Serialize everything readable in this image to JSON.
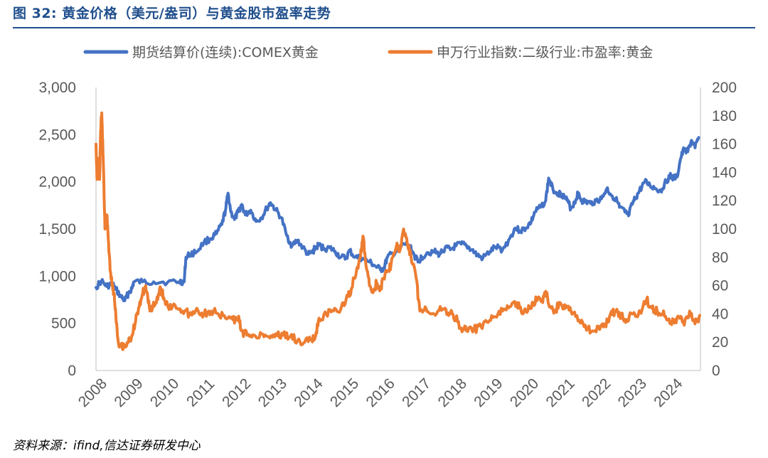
{
  "figure": {
    "title": "图 32:  黄金价格（美元/盎司）与黄金股市盈率走势",
    "source": "资料来源：ifind,信达证券研发中心"
  },
  "chart_data": {
    "type": "line",
    "legend_position": "top",
    "grid": false,
    "y_left": {
      "min": 0,
      "max": 3000,
      "step": 500,
      "tick_labels": [
        "0",
        "500",
        "1,000",
        "1,500",
        "2,000",
        "2,500",
        "3,000"
      ]
    },
    "y_right": {
      "min": 0,
      "max": 200,
      "step": 20,
      "tick_labels": [
        "0",
        "20",
        "40",
        "60",
        "80",
        "100",
        "120",
        "140",
        "160",
        "180",
        "200"
      ]
    },
    "x_range": [
      2008.0,
      2024.8
    ],
    "x_tick_labels": [
      "2008",
      "2009",
      "2010",
      "2011",
      "2012",
      "2013",
      "2014",
      "2015",
      "2016",
      "2017",
      "2018",
      "2019",
      "2020",
      "2021",
      "2022",
      "2023",
      "2024"
    ],
    "series": [
      {
        "name": "期货结算价(连续):COMEX黄金",
        "axis": "left",
        "color": "#4472c4",
        "points": [
          [
            2008.0,
            880
          ],
          [
            2008.15,
            950
          ],
          [
            2008.3,
            890
          ],
          [
            2008.45,
            920
          ],
          [
            2008.55,
            860
          ],
          [
            2008.7,
            780
          ],
          [
            2008.8,
            740
          ],
          [
            2008.9,
            820
          ],
          [
            2009.0,
            870
          ],
          [
            2009.05,
            940
          ],
          [
            2009.3,
            940
          ],
          [
            2009.6,
            940
          ],
          [
            2010.0,
            940
          ],
          [
            2010.3,
            940
          ],
          [
            2010.45,
            940
          ],
          [
            2010.5,
            1200
          ],
          [
            2010.6,
            1230
          ],
          [
            2010.8,
            1260
          ],
          [
            2011.0,
            1360
          ],
          [
            2011.2,
            1400
          ],
          [
            2011.35,
            1450
          ],
          [
            2011.5,
            1550
          ],
          [
            2011.6,
            1700
          ],
          [
            2011.67,
            1880
          ],
          [
            2011.75,
            1680
          ],
          [
            2011.85,
            1600
          ],
          [
            2011.95,
            1680
          ],
          [
            2012.05,
            1760
          ],
          [
            2012.15,
            1650
          ],
          [
            2012.3,
            1700
          ],
          [
            2012.45,
            1580
          ],
          [
            2012.6,
            1620
          ],
          [
            2012.75,
            1720
          ],
          [
            2012.85,
            1780
          ],
          [
            2013.0,
            1700
          ],
          [
            2013.15,
            1620
          ],
          [
            2013.3,
            1430
          ],
          [
            2013.45,
            1320
          ],
          [
            2013.6,
            1380
          ],
          [
            2013.75,
            1300
          ],
          [
            2013.9,
            1230
          ],
          [
            2014.0,
            1250
          ],
          [
            2014.1,
            1300
          ],
          [
            2014.2,
            1330
          ],
          [
            2014.35,
            1290
          ],
          [
            2014.5,
            1300
          ],
          [
            2014.65,
            1260
          ],
          [
            2014.8,
            1200
          ],
          [
            2014.95,
            1190
          ],
          [
            2015.05,
            1270
          ],
          [
            2015.2,
            1200
          ],
          [
            2015.4,
            1190
          ],
          [
            2015.6,
            1150
          ],
          [
            2015.75,
            1110
          ],
          [
            2015.9,
            1070
          ],
          [
            2016.0,
            1080
          ],
          [
            2016.1,
            1200
          ],
          [
            2016.25,
            1240
          ],
          [
            2016.4,
            1270
          ],
          [
            2016.55,
            1340
          ],
          [
            2016.7,
            1330
          ],
          [
            2016.85,
            1220
          ],
          [
            2016.95,
            1150
          ],
          [
            2017.05,
            1200
          ],
          [
            2017.2,
            1250
          ],
          [
            2017.4,
            1260
          ],
          [
            2017.55,
            1230
          ],
          [
            2017.7,
            1300
          ],
          [
            2017.85,
            1280
          ],
          [
            2018.0,
            1320
          ],
          [
            2018.15,
            1340
          ],
          [
            2018.3,
            1320
          ],
          [
            2018.45,
            1280
          ],
          [
            2018.6,
            1220
          ],
          [
            2018.75,
            1190
          ],
          [
            2018.95,
            1260
          ],
          [
            2019.1,
            1310
          ],
          [
            2019.3,
            1280
          ],
          [
            2019.5,
            1400
          ],
          [
            2019.65,
            1510
          ],
          [
            2019.8,
            1480
          ],
          [
            2019.95,
            1510
          ],
          [
            2020.1,
            1580
          ],
          [
            2020.2,
            1680
          ],
          [
            2020.35,
            1730
          ],
          [
            2020.5,
            1800
          ],
          [
            2020.58,
            2040
          ],
          [
            2020.7,
            1920
          ],
          [
            2020.85,
            1880
          ],
          [
            2020.95,
            1870
          ],
          [
            2021.1,
            1800
          ],
          [
            2021.2,
            1720
          ],
          [
            2021.3,
            1780
          ],
          [
            2021.4,
            1880
          ],
          [
            2021.5,
            1800
          ],
          [
            2021.6,
            1790
          ],
          [
            2021.75,
            1770
          ],
          [
            2021.9,
            1800
          ],
          [
            2022.05,
            1820
          ],
          [
            2022.2,
            1930
          ],
          [
            2022.3,
            1870
          ],
          [
            2022.45,
            1820
          ],
          [
            2022.55,
            1730
          ],
          [
            2022.7,
            1680
          ],
          [
            2022.8,
            1640
          ],
          [
            2022.9,
            1760
          ],
          [
            2023.0,
            1830
          ],
          [
            2023.1,
            1900
          ],
          [
            2023.25,
            2000
          ],
          [
            2023.4,
            1960
          ],
          [
            2023.55,
            1930
          ],
          [
            2023.7,
            1900
          ],
          [
            2023.8,
            1980
          ],
          [
            2023.95,
            2060
          ],
          [
            2024.05,
            2040
          ],
          [
            2024.15,
            2050
          ],
          [
            2024.25,
            2250
          ],
          [
            2024.35,
            2350
          ],
          [
            2024.45,
            2320
          ],
          [
            2024.55,
            2440
          ],
          [
            2024.65,
            2360
          ],
          [
            2024.75,
            2470
          ]
        ]
      },
      {
        "name": "申万行业指数:二级行业:市盈率:黄金",
        "axis": "right",
        "color": "#ed7d31",
        "points": [
          [
            2008.0,
            160
          ],
          [
            2008.03,
            135
          ],
          [
            2008.07,
            150
          ],
          [
            2008.1,
            135
          ],
          [
            2008.13,
            170
          ],
          [
            2008.16,
            182
          ],
          [
            2008.2,
            150
          ],
          [
            2008.25,
            100
          ],
          [
            2008.3,
            110
          ],
          [
            2008.35,
            90
          ],
          [
            2008.4,
            70
          ],
          [
            2008.45,
            60
          ],
          [
            2008.5,
            55
          ],
          [
            2008.55,
            40
          ],
          [
            2008.62,
            20
          ],
          [
            2008.7,
            17
          ],
          [
            2008.8,
            18
          ],
          [
            2008.9,
            20
          ],
          [
            2009.0,
            25
          ],
          [
            2009.1,
            35
          ],
          [
            2009.2,
            45
          ],
          [
            2009.3,
            55
          ],
          [
            2009.38,
            60
          ],
          [
            2009.45,
            48
          ],
          [
            2009.55,
            42
          ],
          [
            2009.7,
            52
          ],
          [
            2009.8,
            58
          ],
          [
            2009.9,
            50
          ],
          [
            2010.0,
            45
          ],
          [
            2010.2,
            46
          ],
          [
            2010.4,
            42
          ],
          [
            2010.6,
            40
          ],
          [
            2010.8,
            44
          ],
          [
            2011.0,
            40
          ],
          [
            2011.2,
            42
          ],
          [
            2011.4,
            40
          ],
          [
            2011.6,
            37
          ],
          [
            2011.8,
            36
          ],
          [
            2011.95,
            37
          ],
          [
            2012.05,
            28
          ],
          [
            2012.2,
            25
          ],
          [
            2012.4,
            25
          ],
          [
            2012.6,
            26
          ],
          [
            2012.8,
            24
          ],
          [
            2013.0,
            26
          ],
          [
            2013.2,
            25
          ],
          [
            2013.4,
            24
          ],
          [
            2013.6,
            21
          ],
          [
            2013.8,
            20
          ],
          [
            2014.0,
            22
          ],
          [
            2014.1,
            24
          ],
          [
            2014.2,
            37
          ],
          [
            2014.4,
            40
          ],
          [
            2014.6,
            42
          ],
          [
            2014.8,
            43
          ],
          [
            2014.95,
            50
          ],
          [
            2015.1,
            58
          ],
          [
            2015.25,
            72
          ],
          [
            2015.35,
            80
          ],
          [
            2015.42,
            95
          ],
          [
            2015.5,
            75
          ],
          [
            2015.6,
            60
          ],
          [
            2015.7,
            55
          ],
          [
            2015.8,
            62
          ],
          [
            2015.9,
            58
          ],
          [
            2016.0,
            65
          ],
          [
            2016.1,
            70
          ],
          [
            2016.2,
            75
          ],
          [
            2016.35,
            88
          ],
          [
            2016.45,
            85
          ],
          [
            2016.55,
            100
          ],
          [
            2016.65,
            90
          ],
          [
            2016.75,
            82
          ],
          [
            2016.9,
            65
          ],
          [
            2017.0,
            42
          ],
          [
            2017.15,
            45
          ],
          [
            2017.3,
            40
          ],
          [
            2017.5,
            42
          ],
          [
            2017.7,
            44
          ],
          [
            2017.85,
            40
          ],
          [
            2018.0,
            37
          ],
          [
            2018.15,
            30
          ],
          [
            2018.3,
            28
          ],
          [
            2018.5,
            29
          ],
          [
            2018.7,
            31
          ],
          [
            2018.9,
            34
          ],
          [
            2019.1,
            38
          ],
          [
            2019.3,
            42
          ],
          [
            2019.5,
            45
          ],
          [
            2019.7,
            48
          ],
          [
            2019.85,
            40
          ],
          [
            2020.0,
            42
          ],
          [
            2020.15,
            48
          ],
          [
            2020.3,
            52
          ],
          [
            2020.4,
            50
          ],
          [
            2020.5,
            56
          ],
          [
            2020.6,
            45
          ],
          [
            2020.75,
            42
          ],
          [
            2020.9,
            48
          ],
          [
            2021.05,
            44
          ],
          [
            2021.2,
            42
          ],
          [
            2021.4,
            35
          ],
          [
            2021.6,
            32
          ],
          [
            2021.8,
            28
          ],
          [
            2022.0,
            29
          ],
          [
            2022.15,
            32
          ],
          [
            2022.3,
            40
          ],
          [
            2022.45,
            42
          ],
          [
            2022.6,
            38
          ],
          [
            2022.75,
            36
          ],
          [
            2022.9,
            40
          ],
          [
            2023.05,
            38
          ],
          [
            2023.2,
            45
          ],
          [
            2023.3,
            50
          ],
          [
            2023.45,
            44
          ],
          [
            2023.6,
            42
          ],
          [
            2023.75,
            40
          ],
          [
            2023.9,
            36
          ],
          [
            2024.05,
            34
          ],
          [
            2024.2,
            38
          ],
          [
            2024.35,
            32
          ],
          [
            2024.5,
            42
          ],
          [
            2024.6,
            36
          ],
          [
            2024.7,
            35
          ],
          [
            2024.78,
            39
          ]
        ]
      }
    ]
  }
}
